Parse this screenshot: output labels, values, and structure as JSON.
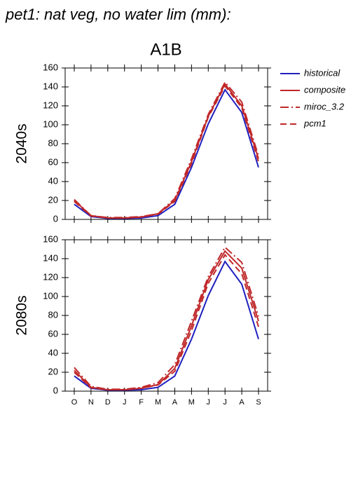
{
  "title": "pet1: nat veg, no water lim (mm):",
  "subtitle": "A1B",
  "chart_data": [
    {
      "type": "line",
      "ylabel": "2040s",
      "categories": [
        "O",
        "N",
        "D",
        "J",
        "F",
        "M",
        "A",
        "M",
        "J",
        "J",
        "A",
        "S"
      ],
      "ylim": [
        0,
        160
      ],
      "yticks": [
        0,
        20,
        40,
        60,
        80,
        100,
        120,
        140,
        160
      ],
      "series": [
        {
          "name": "historical",
          "color": "#1f1fbf",
          "dash": "solid",
          "values": [
            16,
            3,
            1,
            1,
            1.5,
            4,
            16,
            55,
            101,
            137,
            113,
            55
          ]
        },
        {
          "name": "composite",
          "color": "#c0282a",
          "dash": "solid",
          "values": [
            20,
            4,
            1.5,
            1.5,
            2.5,
            6,
            20,
            61,
            109,
            143,
            120,
            64
          ]
        },
        {
          "name": "miroc_3.2",
          "color": "#c0282a",
          "dash": "dashdot",
          "values": [
            21,
            4,
            2,
            2,
            3,
            6,
            22,
            64,
            111,
            145,
            124,
            67
          ]
        },
        {
          "name": "pcm1",
          "color": "#c0282a",
          "dash": "dashed",
          "values": [
            19,
            3.5,
            1.5,
            1.5,
            2.5,
            5.5,
            19,
            59,
            108,
            141,
            118,
            61
          ]
        }
      ]
    },
    {
      "type": "line",
      "ylabel": "2080s",
      "categories": [
        "O",
        "N",
        "D",
        "J",
        "F",
        "M",
        "A",
        "M",
        "J",
        "J",
        "A",
        "S"
      ],
      "ylim": [
        0,
        160
      ],
      "yticks": [
        0,
        20,
        40,
        60,
        80,
        100,
        120,
        140,
        160
      ],
      "series": [
        {
          "name": "historical",
          "color": "#1f1fbf",
          "dash": "solid",
          "values": [
            16,
            3,
            1,
            1,
            1.5,
            4,
            16,
            55,
            101,
            137,
            113,
            55
          ]
        },
        {
          "name": "composite",
          "color": "#c0282a",
          "dash": "solid",
          "values": [
            22,
            4,
            1.5,
            1.5,
            3,
            7,
            24,
            69,
            118,
            148,
            130,
            74
          ]
        },
        {
          "name": "miroc_3.2",
          "color": "#c0282a",
          "dash": "dashdot",
          "values": [
            25,
            5,
            2,
            2,
            4,
            9,
            28,
            74,
            121,
            152,
            136,
            79
          ]
        },
        {
          "name": "pcm1",
          "color": "#c0282a",
          "dash": "dashed",
          "values": [
            20,
            3.5,
            1.5,
            1.5,
            3,
            6.5,
            21,
            64,
            114,
            144,
            124,
            68
          ]
        }
      ]
    }
  ]
}
